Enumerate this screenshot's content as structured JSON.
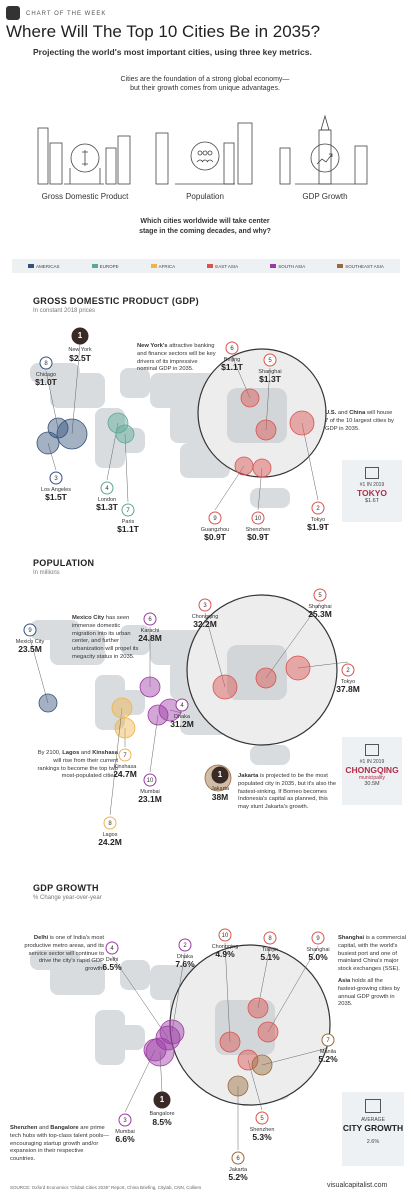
{
  "header": {
    "kicker": "CHART OF THE WEEK",
    "title": "Where Will The Top 10 Cities Be in 2035?",
    "subtitle": "Projecting the world's most important cities, using three key metrics."
  },
  "intro": {
    "line1": "Cities are the foundation of a strong global economy—",
    "line2": "but their growth comes from unique advantages."
  },
  "metrics": [
    "Gross Domestic Product",
    "Population",
    "GDP Growth"
  ],
  "question": {
    "line1": "Which cities worldwide will take center",
    "line2": "stage in the coming decades, and why?"
  },
  "legend": [
    {
      "label": "AMERICAS",
      "color": "#34527a"
    },
    {
      "label": "EUROPE",
      "color": "#5ba896"
    },
    {
      "label": "AFRICA",
      "color": "#f0b34e"
    },
    {
      "label": "EAST ASIA",
      "color": "#d9534f"
    },
    {
      "label": "SOUTH ASIA",
      "color": "#9b3aa3"
    },
    {
      "label": "SOUTHEAST ASIA",
      "color": "#9a6a3c"
    }
  ],
  "colors": {
    "americas": "#34527a",
    "europe": "#5ba896",
    "africa": "#f0b34e",
    "east_asia": "#d9534f",
    "south_asia": "#9b3aa3",
    "southeast_asia": "#9a6a3c",
    "map": "#d9dcdf",
    "dark": "#3a2a25"
  },
  "gdp": {
    "title": "GROSS DOMESTIC PRODUCT (GDP)",
    "subtitle": "In constant 2018 prices",
    "note_ny": {
      "bold": "New York's",
      "text": " attractive banking and finance sectors will be key drivers of its impressive nominal GDP in 2035."
    },
    "note_asia": {
      "b1": "U.S.",
      "t1": " and ",
      "b2": "China",
      "t2": " will house 7 of the 10 largest cities by GDP in 2035."
    },
    "card": {
      "year": "#1 IN 2019",
      "city": "TOKYO",
      "value": "$1.6T"
    }
  },
  "population": {
    "title": "POPULATION",
    "subtitle": "In millions",
    "note_mexico": {
      "bold": "Mexico City",
      "text": " has seen immense domestic migration into its urban center, and further urbanization will propel its megacity status in 2035."
    },
    "note_africa": {
      "t1": "By 2100, ",
      "b1": "Lagos",
      "t2": " and ",
      "b2": "Kinshasa",
      "t3": " will rise from their current rankings to become the top two most-populated cities."
    },
    "note_jakarta": {
      "bold": "Jakarta",
      "text": " is projected to be the most populated city in 2035, but it's also the fastest-sinking. If Borneo becomes Indonesia's capital as planned, this may stunt Jakarta's growth."
    },
    "card": {
      "year": "#1 IN 2019",
      "city": "CHONGQING",
      "sub": "municipality",
      "value": "30.5M"
    }
  },
  "growth": {
    "title": "GDP GROWTH",
    "subtitle": "% Change year-over-year",
    "note_delhi": {
      "bold": "Delhi",
      "text": " is one of India's most productive metro areas, and its service sector will continue to drive the city's rapid GDP growth."
    },
    "note_shanghai": {
      "bold": "Shanghai",
      "text": " is a commercial capital, with the world's busiest port and one of mainland China's major stock exchanges (SSE)."
    },
    "note_asia": {
      "bold": "Asia",
      "text": " holds all the fastest-growing cities by annual GDP growth in 2035."
    },
    "note_shenzhen": {
      "b1": "Shenzhen",
      "t1": " and ",
      "b2": "Bangalore",
      "t2": " are prime tech hubs with top-class talent pools—encouraging startup growth and/or expansion in their respective countries."
    },
    "card": {
      "title1": "AVERAGE",
      "title2": "CITY GROWTH",
      "value": "2.6%"
    }
  },
  "chart_data": [
    {
      "type": "scatter",
      "title": "GROSS DOMESTIC PRODUCT (GDP)",
      "subtitle": "In constant 2018 prices",
      "unit": "$ trillions",
      "points": [
        {
          "rank": 1,
          "city": "New York",
          "value": 2.5,
          "label": "$2.5T",
          "region": "americas"
        },
        {
          "rank": 2,
          "city": "Tokyo",
          "value": 1.9,
          "label": "$1.9T",
          "region": "east_asia"
        },
        {
          "rank": 3,
          "city": "Los Angeles",
          "value": 1.5,
          "label": "$1.5T",
          "region": "americas"
        },
        {
          "rank": 4,
          "city": "London",
          "value": 1.3,
          "label": "$1.3T",
          "region": "europe"
        },
        {
          "rank": 5,
          "city": "Shanghai",
          "value": 1.3,
          "label": "$1.3T",
          "region": "east_asia"
        },
        {
          "rank": 6,
          "city": "Beijing",
          "value": 1.1,
          "label": "$1.1T",
          "region": "east_asia"
        },
        {
          "rank": 7,
          "city": "Paris",
          "value": 1.1,
          "label": "$1.1T",
          "region": "europe"
        },
        {
          "rank": 8,
          "city": "Chicago",
          "value": 1.0,
          "label": "$1.0T",
          "region": "americas"
        },
        {
          "rank": 9,
          "city": "Guangzhou",
          "value": 0.9,
          "label": "$0.9T",
          "region": "east_asia"
        },
        {
          "rank": 10,
          "city": "Shenzhen",
          "value": 0.9,
          "label": "$0.9T",
          "region": "east_asia"
        }
      ]
    },
    {
      "type": "scatter",
      "title": "POPULATION",
      "subtitle": "In millions",
      "unit": "millions",
      "points": [
        {
          "rank": 1,
          "city": "Jakarta",
          "value": 38,
          "label": "38M",
          "region": "southeast_asia"
        },
        {
          "rank": 2,
          "city": "Tokyo",
          "value": 37.8,
          "label": "37.8M",
          "region": "east_asia"
        },
        {
          "rank": 3,
          "city": "Chongqing",
          "value": 32.2,
          "label": "32.2M",
          "region": "east_asia"
        },
        {
          "rank": 4,
          "city": "Dhaka",
          "value": 31.2,
          "label": "31.2M",
          "region": "south_asia"
        },
        {
          "rank": 5,
          "city": "Shanghai",
          "value": 25.3,
          "label": "25.3M",
          "region": "east_asia"
        },
        {
          "rank": 6,
          "city": "Karachi",
          "value": 24.8,
          "label": "24.8M",
          "region": "south_asia"
        },
        {
          "rank": 7,
          "city": "Kinshasa",
          "value": 24.7,
          "label": "24.7M",
          "region": "africa"
        },
        {
          "rank": 8,
          "city": "Lagos",
          "value": 24.2,
          "label": "24.2M",
          "region": "africa"
        },
        {
          "rank": 9,
          "city": "Mexico City",
          "value": 23.5,
          "label": "23.5M",
          "region": "americas"
        },
        {
          "rank": 10,
          "city": "Mumbai",
          "value": 23.1,
          "label": "23.1M",
          "region": "south_asia"
        }
      ]
    },
    {
      "type": "scatter",
      "title": "GDP GROWTH",
      "subtitle": "% Change year-over-year",
      "unit": "%",
      "points": [
        {
          "rank": 1,
          "city": "Bangalore",
          "value": 8.5,
          "label": "8.5%",
          "region": "south_asia"
        },
        {
          "rank": 2,
          "city": "Dhaka",
          "value": 7.6,
          "label": "7.6%",
          "region": "south_asia"
        },
        {
          "rank": 3,
          "city": "Mumbai",
          "value": 6.6,
          "label": "6.6%",
          "region": "south_asia"
        },
        {
          "rank": 4,
          "city": "Delhi",
          "value": 6.5,
          "label": "6.5%",
          "region": "south_asia"
        },
        {
          "rank": 5,
          "city": "Shenzhen",
          "value": 5.3,
          "label": "5.3%",
          "region": "east_asia"
        },
        {
          "rank": 6,
          "city": "Jakarta",
          "value": 5.2,
          "label": "5.2%",
          "region": "southeast_asia"
        },
        {
          "rank": 7,
          "city": "Manila",
          "value": 5.2,
          "label": "5.2%",
          "region": "southeast_asia"
        },
        {
          "rank": 8,
          "city": "Tianjin",
          "value": 5.1,
          "label": "5.1%",
          "region": "east_asia"
        },
        {
          "rank": 9,
          "city": "Shanghai",
          "value": 5.0,
          "label": "5.0%",
          "region": "east_asia"
        },
        {
          "rank": 10,
          "city": "Chongqing",
          "value": 4.9,
          "label": "4.9%",
          "region": "east_asia"
        }
      ]
    }
  ],
  "footer": {
    "source": "SOURCE: Oxford Economics \"Global Cities 2035\" Report, China Briefing, Citylab, CNN, Colliers",
    "brand": "visualcapitalist.com"
  }
}
